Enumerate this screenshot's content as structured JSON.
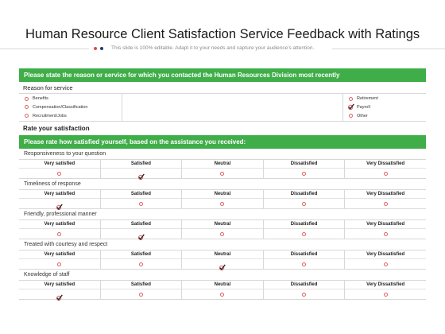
{
  "header": {
    "title": "Human Resource Client Satisfaction Service Feedback with Ratings",
    "subtitle": "This slide is 100% editable. Adapt it to your needs and capture your audience's attention."
  },
  "colors": {
    "accent_green": "#3fae49",
    "radio_red": "#e0605f",
    "dot_blue": "#1f3b7a",
    "dot_red": "#e24a4a"
  },
  "section1": {
    "bar": "Please state the reason or service for which you contacted the Human Resources Division most recently",
    "reason_label": "Reason for service",
    "options_left": [
      {
        "label": "Benefits",
        "checked": false
      },
      {
        "label": "Compensation/Classification",
        "checked": false
      },
      {
        "label": "Recruitment/Jobs",
        "checked": false
      }
    ],
    "options_right": [
      {
        "label": "Retirement",
        "checked": false
      },
      {
        "label": "Payroll",
        "checked": true
      },
      {
        "label": "Other",
        "checked": false
      }
    ]
  },
  "rate_heading": "Rate your satisfaction",
  "section2": {
    "bar": "Please rate how satisfied yourself, based on the assistance you received:",
    "scale": [
      "Very satisfied",
      "Satisfied",
      "Neutral",
      "Dissatisfied",
      "Very Dissatisfied"
    ],
    "questions": [
      {
        "label": "Responsiveness  to your question",
        "selected": 1
      },
      {
        "label": "Timeliness of response",
        "selected": 0
      },
      {
        "label": "Friendly, professional manner",
        "selected": 1
      },
      {
        "label": "Treated with courtesy and respect",
        "selected": 2
      },
      {
        "label": "Knowledge of staff",
        "selected": 0
      }
    ]
  }
}
